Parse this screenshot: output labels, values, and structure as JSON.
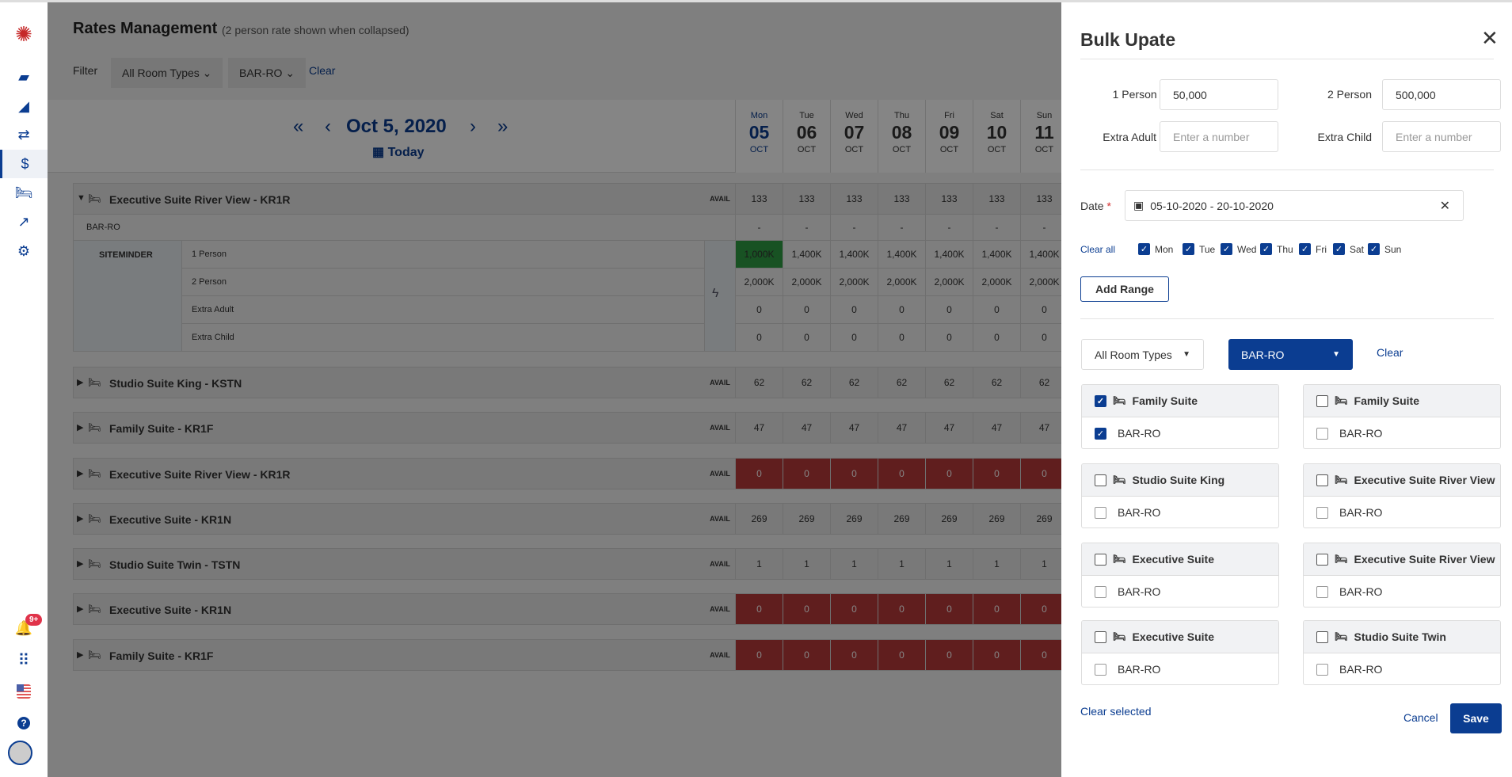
{
  "sidebar": {
    "icons": [
      "logo-icon",
      "dashboard-chart-icon",
      "tools-icon",
      "exchange-icon",
      "dollar-icon",
      "bed-icon",
      "trend-icon",
      "gear-icon"
    ],
    "bottom": [
      "bell-icon",
      "apps-grid-icon",
      "us-flag-icon",
      "help-icon",
      "avatar"
    ],
    "notification_badge": "9+"
  },
  "main": {
    "title": "Rates Management",
    "subtitle": "(2 person rate shown when collapsed)",
    "filter_label": "Filter",
    "filter_room_types": "All Room Types",
    "filter_rate": "BAR-RO",
    "clear": "Clear",
    "date": "Oct 5, 2020",
    "today": "Today",
    "days": [
      {
        "name": "Mon",
        "num": "05",
        "mon": "OCT"
      },
      {
        "name": "Tue",
        "num": "06",
        "mon": "OCT"
      },
      {
        "name": "Wed",
        "num": "07",
        "mon": "OCT"
      },
      {
        "name": "Thu",
        "num": "08",
        "mon": "OCT"
      },
      {
        "name": "Fri",
        "num": "09",
        "mon": "OCT"
      },
      {
        "name": "Sat",
        "num": "10",
        "mon": "OCT"
      },
      {
        "name": "Sun",
        "num": "11",
        "mon": "OCT"
      }
    ],
    "avail_label": "AVAIL",
    "expanded": {
      "name": "Executive Suite River View - KR1R",
      "avail": [
        "133",
        "133",
        "133",
        "133",
        "133",
        "133",
        "133"
      ],
      "rate_plan": "BAR-RO",
      "rate_plan_values": [
        "-",
        "-",
        "-",
        "-",
        "-",
        "-",
        "-"
      ],
      "channel": "SITEMINDER",
      "rows": [
        {
          "label": "1 Person",
          "values": [
            "1,000K",
            "1,400K",
            "1,400K",
            "1,400K",
            "1,400K",
            "1,400K",
            "1,400K"
          ]
        },
        {
          "label": "2 Person",
          "values": [
            "2,000K",
            "2,000K",
            "2,000K",
            "2,000K",
            "2,000K",
            "2,000K",
            "2,000K"
          ]
        },
        {
          "label": "Extra Adult",
          "values": [
            "0",
            "0",
            "0",
            "0",
            "0",
            "0",
            "0"
          ]
        },
        {
          "label": "Extra Child",
          "values": [
            "0",
            "0",
            "0",
            "0",
            "0",
            "0",
            "0"
          ]
        }
      ]
    },
    "rooms": [
      {
        "name": "Studio Suite King - KSTN",
        "avail": "62",
        "red": false
      },
      {
        "name": "Family Suite - KR1F",
        "avail": "47",
        "red": false
      },
      {
        "name": "Executive Suite River View - KR1R",
        "avail": "0",
        "red": true
      },
      {
        "name": "Executive Suite - KR1N",
        "avail": "269",
        "red": false
      },
      {
        "name": "Studio Suite Twin - TSTN",
        "avail": "1",
        "red": false
      },
      {
        "name": "Executive Suite - KR1N",
        "avail": "0",
        "red": true
      },
      {
        "name": "Family Suite - KR1F",
        "avail": "0",
        "red": true
      }
    ]
  },
  "panel": {
    "title": "Bulk Upate",
    "one_person_label": "1 Person",
    "one_person_value": "50,000",
    "two_person_label": "2 Person",
    "two_person_value": "500,000",
    "extra_adult_label": "Extra Adult",
    "extra_child_label": "Extra Child",
    "placeholder": "Enter a number",
    "date_label": "Date",
    "date_value": "05-10-2020 - 20-10-2020",
    "clear_all": "Clear all",
    "weekdays": [
      {
        "label": "Mon",
        "checked": true
      },
      {
        "label": "Tue",
        "checked": true
      },
      {
        "label": "Wed",
        "checked": true
      },
      {
        "label": "Thu",
        "checked": true
      },
      {
        "label": "Fri",
        "checked": true
      },
      {
        "label": "Sat",
        "checked": true
      },
      {
        "label": "Sun",
        "checked": true
      }
    ],
    "add_range": "Add Range",
    "room_types_select": "All Room Types",
    "rate_select": "BAR-RO",
    "clear": "Clear",
    "cards": [
      {
        "room": "Family Suite",
        "rate": "BAR-RO",
        "checked": true
      },
      {
        "room": "Family Suite",
        "rate": "BAR-RO",
        "checked": false
      },
      {
        "room": "Studio Suite King",
        "rate": "BAR-RO",
        "checked": false
      },
      {
        "room": "Executive Suite River View",
        "rate": "BAR-RO",
        "checked": false
      },
      {
        "room": "Executive Suite",
        "rate": "BAR-RO",
        "checked": false
      },
      {
        "room": "Executive Suite River View",
        "rate": "BAR-RO",
        "checked": false
      },
      {
        "room": "Executive Suite",
        "rate": "BAR-RO",
        "checked": false
      },
      {
        "room": "Studio Suite Twin",
        "rate": "BAR-RO",
        "checked": false
      }
    ],
    "clear_selected": "Clear selected",
    "cancel": "Cancel",
    "save": "Save"
  },
  "colors": {
    "primary": "#0b3d91",
    "green_cell": "#2e9e44",
    "red_cell": "#b93a3a",
    "badge": "#e0334a"
  }
}
